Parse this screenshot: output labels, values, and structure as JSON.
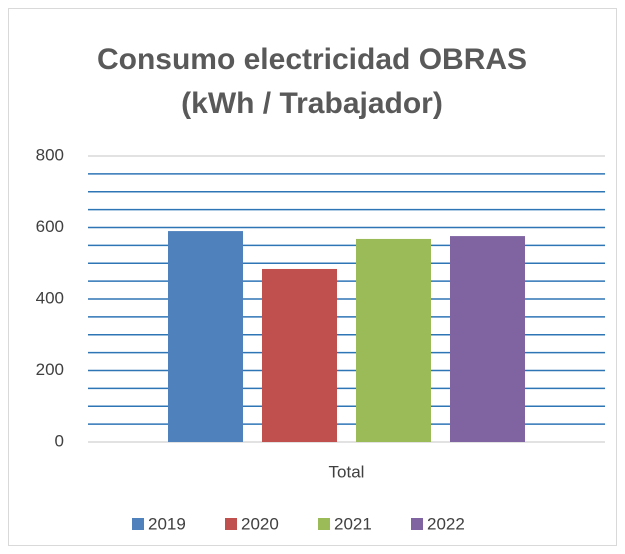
{
  "chart_data": {
    "type": "bar",
    "title": "Consumo electricidad OBRAS (kWh / Trabajador)",
    "categories": [
      "Total"
    ],
    "series": [
      {
        "name": "2019",
        "color": "#4f81bd",
        "values": [
          590
        ]
      },
      {
        "name": "2020",
        "color": "#c0504d",
        "values": [
          484
        ]
      },
      {
        "name": "2021",
        "color": "#9bbb59",
        "values": [
          568
        ]
      },
      {
        "name": "2022",
        "color": "#8064a2",
        "values": [
          576
        ]
      }
    ],
    "ylim": [
      0,
      800
    ],
    "yticks": [
      0,
      200,
      400,
      600,
      800
    ],
    "minor_gridlines": [
      50,
      100,
      150,
      250,
      300,
      350,
      450,
      500,
      550,
      650,
      700,
      750
    ],
    "grid": true,
    "grid_color": "#2e75b6",
    "legend": "bottom"
  }
}
